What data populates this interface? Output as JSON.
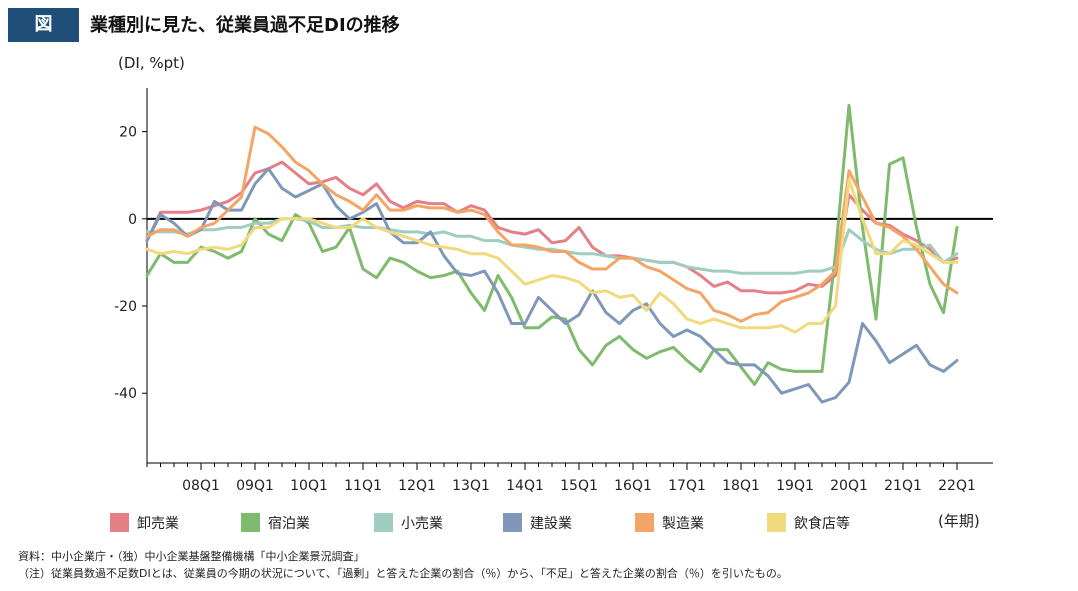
{
  "header": {
    "tag": "図",
    "title": "業種別に見た、従業員過不足DIの推移"
  },
  "chart_data": {
    "type": "line",
    "ylabel": "(DI, %pt)",
    "xlabel": "(年期)",
    "ylim": [
      -56,
      30
    ],
    "yticks": [
      20,
      0,
      -20,
      -40
    ],
    "x_tick_labels": [
      "08Q1",
      "09Q1",
      "10Q1",
      "11Q1",
      "12Q1",
      "13Q1",
      "14Q1",
      "15Q1",
      "16Q1",
      "17Q1",
      "18Q1",
      "19Q1",
      "20Q1",
      "21Q1",
      "22Q1"
    ],
    "x_start": "2007Q1",
    "x_end": "2022Q1",
    "series": [
      {
        "name": "卸売業",
        "color": "#e57f86",
        "values": [
          -5,
          1.5,
          1.5,
          1.5,
          2,
          3,
          4,
          6,
          10.5,
          11.5,
          13,
          10.5,
          8,
          8.5,
          9.5,
          7,
          5.5,
          8,
          4,
          2.5,
          4,
          3.5,
          3.5,
          1.5,
          3,
          2,
          -2,
          -3,
          -3.5,
          -2.5,
          -5.5,
          -5,
          -2,
          -6.5,
          -8.5,
          -8.5,
          -9,
          -9.5,
          -10,
          -10,
          -11,
          -13,
          -15.5,
          -14.5,
          -16.5,
          -16.5,
          -17,
          -17,
          -16.5,
          -15,
          -15.5,
          -13,
          5.5,
          2,
          -1,
          -1.5,
          -3.5,
          -5,
          -7,
          -10,
          -9
        ]
      },
      {
        "name": "宿泊業",
        "color": "#7fba6d",
        "values": [
          -13,
          -8,
          -10,
          -10,
          -6.5,
          -7.5,
          -9,
          -7.5,
          0,
          -3.5,
          -5,
          1,
          -1,
          -7.5,
          -6.5,
          -2,
          -11.5,
          -13.5,
          -9,
          -10,
          -12,
          -13.5,
          -13,
          -12,
          -17,
          -21,
          -13,
          -18,
          -25,
          -25,
          -22.5,
          -23,
          -30,
          -33.5,
          -29,
          -27,
          -30,
          -32,
          -30.5,
          -29.5,
          -32.5,
          -35,
          -30,
          -30,
          -34,
          -38,
          -33,
          -34.5,
          -35,
          -35,
          -35,
          -8,
          26,
          -2,
          -23,
          12.5,
          14,
          -2,
          -15,
          -21.5,
          -2
        ]
      },
      {
        "name": "小売業",
        "color": "#9fcdbf",
        "values": [
          -3,
          -3,
          -3,
          -3.5,
          -2.5,
          -2.5,
          -2,
          -2,
          -1,
          -1,
          0,
          0,
          -0.5,
          -2,
          -2,
          -1.5,
          -2,
          -2,
          -2.5,
          -3,
          -3,
          -3.5,
          -3,
          -4,
          -4,
          -5,
          -5,
          -6,
          -6.5,
          -7,
          -7,
          -7.5,
          -8,
          -8,
          -8.5,
          -9,
          -9,
          -9.5,
          -10,
          -10,
          -11,
          -11.5,
          -12,
          -12,
          -12.5,
          -12.5,
          -12.5,
          -12.5,
          -12.5,
          -12,
          -12,
          -11,
          -2.5,
          -5,
          -7,
          -8,
          -7,
          -7,
          -6,
          -10,
          -8
        ]
      },
      {
        "name": "建設業",
        "color": "#7f98ba",
        "values": [
          -5,
          1,
          -1,
          -4,
          -2.5,
          4,
          2,
          2,
          8,
          11.5,
          7,
          5,
          6.5,
          8,
          3,
          0,
          1.5,
          3.5,
          -3,
          -5.5,
          -5.5,
          -3,
          -8.5,
          -12.5,
          -13,
          -12,
          -17,
          -24,
          -24,
          -18,
          -21,
          -24,
          -22,
          -16.5,
          -21.5,
          -24,
          -21,
          -19.5,
          -24,
          -27,
          -25.5,
          -27,
          -30,
          -33,
          -33.5,
          -33.5,
          -36,
          -40,
          -39,
          -38,
          -42,
          -41,
          -37.5,
          -24,
          -28,
          -33,
          -31,
          -29,
          -33.5,
          -35,
          -32.5
        ]
      },
      {
        "name": "製造業",
        "color": "#f4a565",
        "values": [
          -4,
          -2.5,
          -2.5,
          -4,
          -2,
          -1,
          2,
          5,
          21,
          19.5,
          16.5,
          13,
          11,
          8,
          5.5,
          4,
          2,
          5.5,
          2,
          2,
          3,
          2.5,
          2.5,
          1.5,
          2,
          1,
          -3,
          -6,
          -6,
          -6.5,
          -7.5,
          -7.5,
          -10,
          -11.5,
          -11.5,
          -9,
          -9,
          -11,
          -12,
          -14,
          -16,
          -17,
          -21,
          -22,
          -23.5,
          -22,
          -21.5,
          -19,
          -18,
          -17,
          -15,
          -12,
          11,
          5,
          -1,
          -2,
          -4,
          -7,
          -11,
          -15,
          -17
        ]
      },
      {
        "name": "飲食店等",
        "color": "#f1d97d",
        "values": [
          -7,
          -8,
          -7.5,
          -8,
          -7,
          -6.5,
          -7,
          -6,
          -2,
          -2,
          0,
          0,
          0,
          -1,
          -2,
          -2,
          0,
          -2,
          -3,
          -4,
          -5,
          -6,
          -6.5,
          -7,
          -8,
          -8,
          -9,
          -12,
          -15,
          -14,
          -13,
          -13.5,
          -14.5,
          -17,
          -16.5,
          -18,
          -17.5,
          -21,
          -17,
          -19.5,
          -23,
          -24,
          -23,
          -24,
          -25,
          -25,
          -25,
          -24.5,
          -26,
          -24,
          -24,
          -20,
          9,
          0,
          -8,
          -8,
          -5,
          -6,
          -8,
          -10,
          -10
        ]
      }
    ]
  },
  "notes": {
    "source": "資料：中小企業庁・（独）中小企業基盤整備機構「中小企業景況調査」",
    "note": "（注）従業員数過不足数DIとは、従業員の今期の状況について、「過剰」と答えた企業の割合（％）から、「不足」と答えた企業の割合（％）を引いたもの。"
  }
}
